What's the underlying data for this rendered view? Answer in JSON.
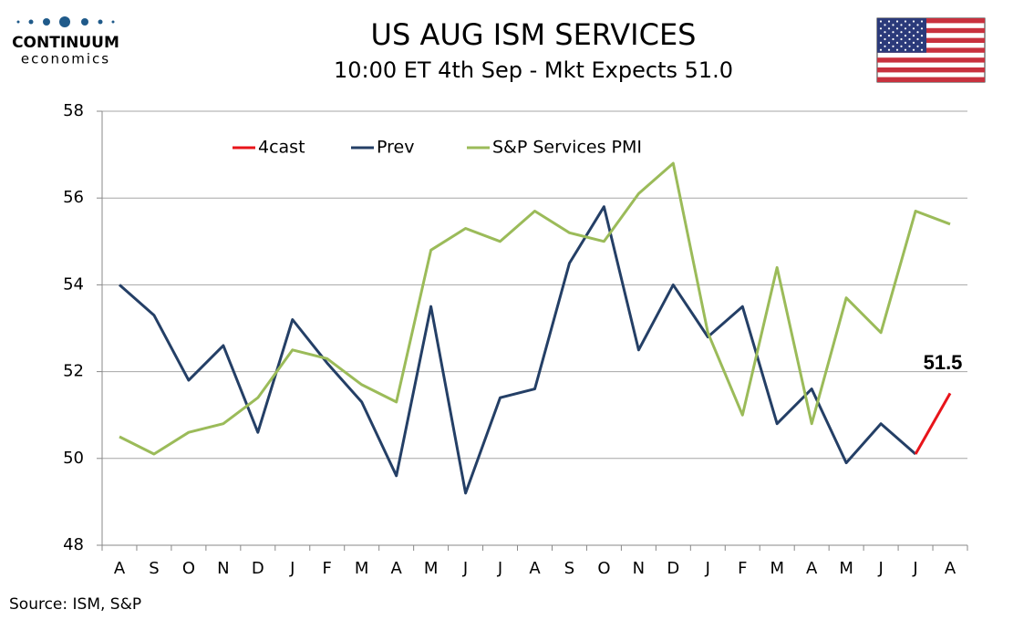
{
  "logo": {
    "name": "CONTINUUM",
    "tagline": "economics"
  },
  "source": "Source: ISM, S&P",
  "chart_data": {
    "type": "line",
    "title": "US AUG ISM SERVICES",
    "subtitle": "10:00 ET 4th Sep - Mkt Expects 51.0",
    "categories": [
      "A",
      "S",
      "O",
      "N",
      "D",
      "J",
      "F",
      "M",
      "A",
      "M",
      "J",
      "J",
      "A",
      "S",
      "O",
      "N",
      "D",
      "J",
      "F",
      "M",
      "A",
      "M",
      "J",
      "J",
      "A"
    ],
    "ylim": [
      48,
      58
    ],
    "yticks": [
      48,
      50,
      52,
      54,
      56,
      58
    ],
    "grid": true,
    "legend": "top",
    "series": [
      {
        "name": "4cast",
        "color": "#e8141a",
        "values": [
          null,
          null,
          null,
          null,
          null,
          null,
          null,
          null,
          null,
          null,
          null,
          null,
          null,
          null,
          null,
          null,
          null,
          null,
          null,
          null,
          null,
          null,
          null,
          50.1,
          51.5
        ]
      },
      {
        "name": "Prev",
        "color": "#243f66",
        "values": [
          54.0,
          53.3,
          51.8,
          52.6,
          50.6,
          53.2,
          52.2,
          51.3,
          49.6,
          53.5,
          49.2,
          51.4,
          51.6,
          54.5,
          55.8,
          52.5,
          54.0,
          52.8,
          53.5,
          50.8,
          51.6,
          49.9,
          50.8,
          50.1,
          null
        ]
      },
      {
        "name": "S&P Services PMI",
        "color": "#9bbb59",
        "values": [
          50.5,
          50.1,
          50.6,
          50.8,
          51.4,
          52.5,
          52.3,
          51.7,
          51.3,
          54.8,
          55.3,
          55.0,
          55.7,
          55.2,
          55.0,
          56.1,
          56.8,
          52.9,
          51.0,
          54.4,
          50.8,
          53.7,
          52.9,
          55.7,
          55.4
        ]
      }
    ]
  }
}
